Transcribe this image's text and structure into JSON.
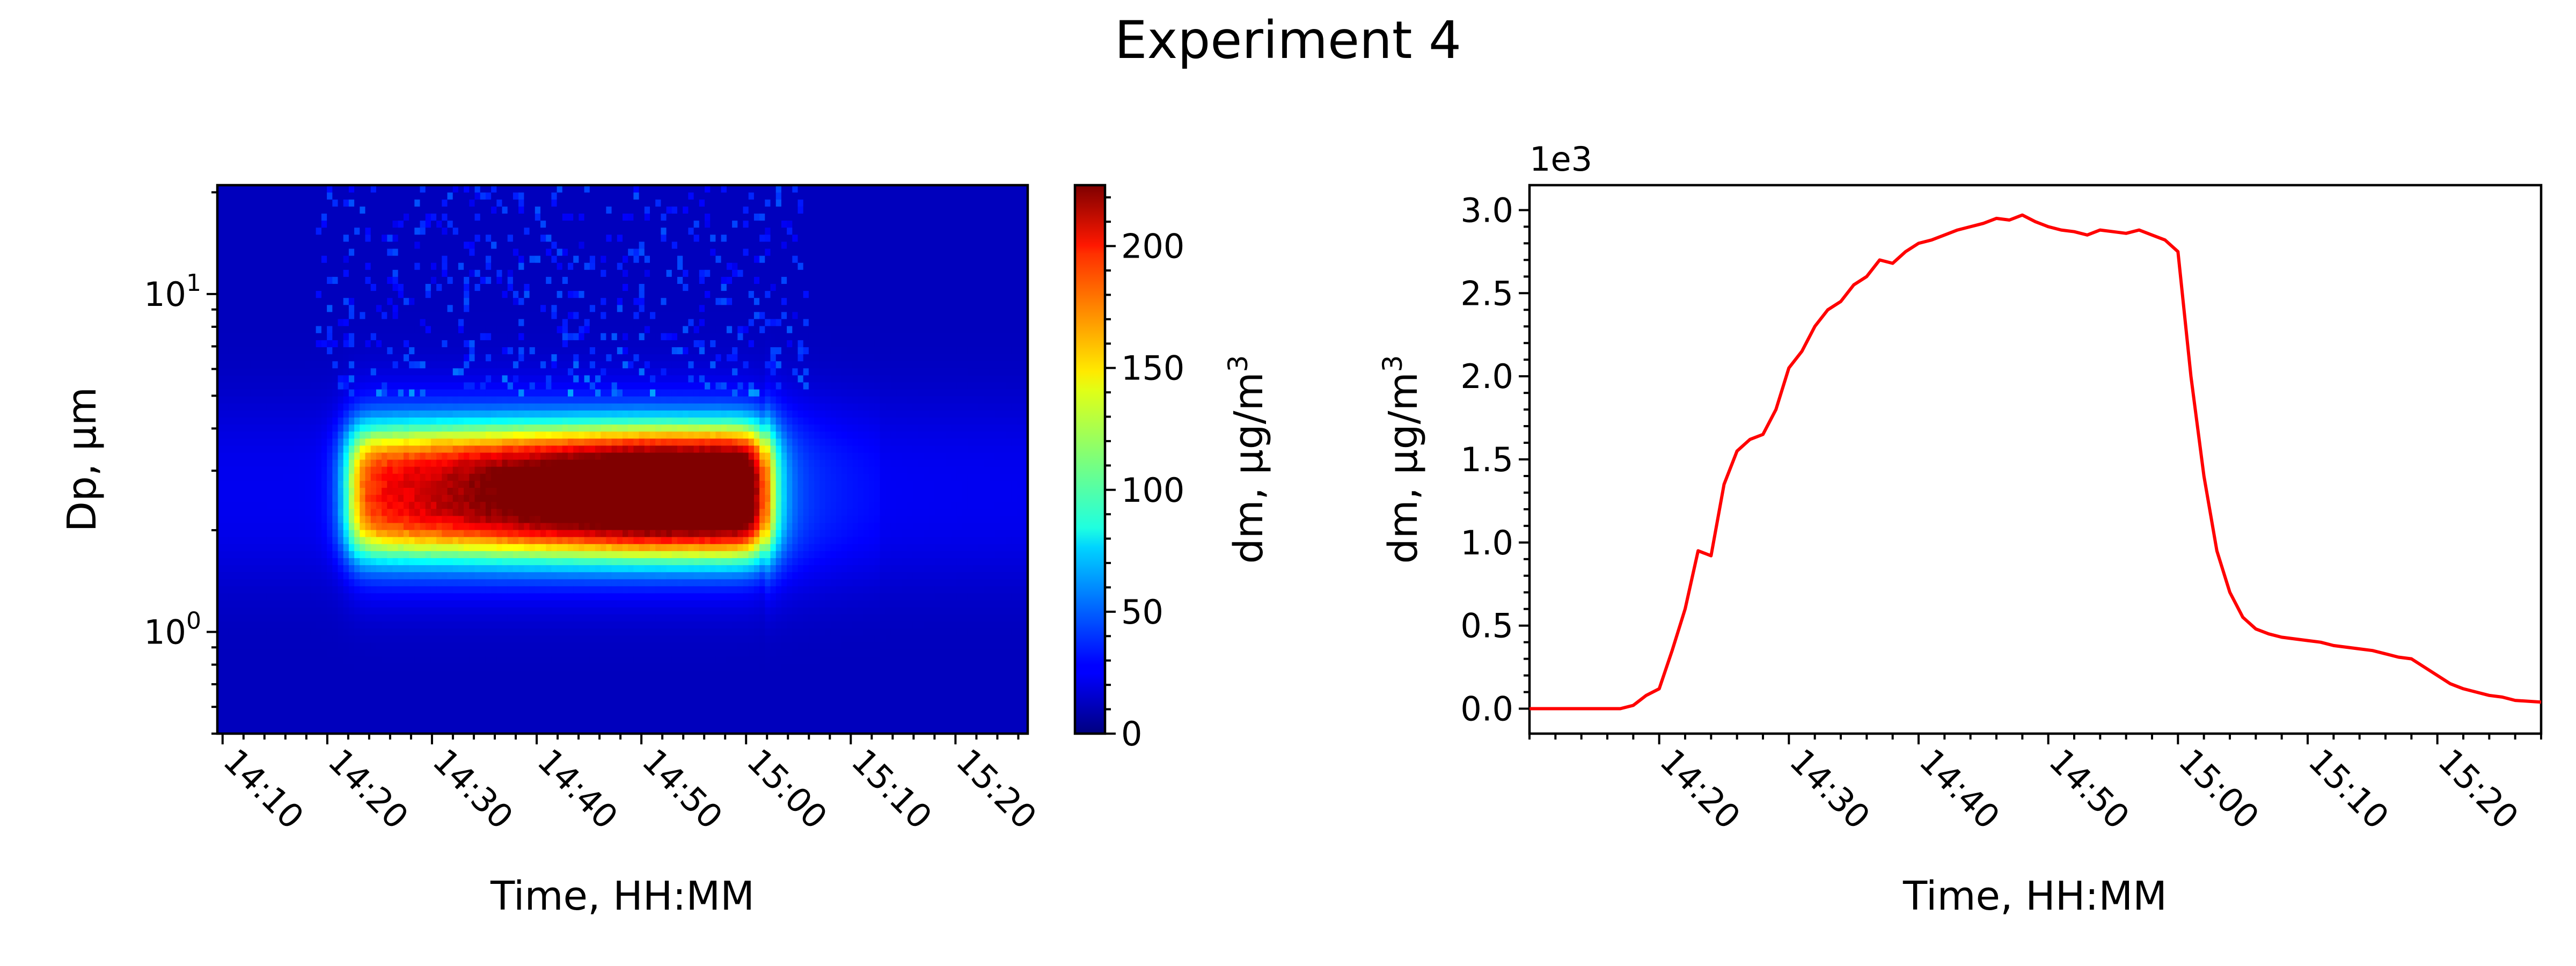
{
  "figure": {
    "title": "Experiment 4"
  },
  "chart_data": [
    {
      "type": "heatmap",
      "xlabel": "Time, HH:MM",
      "ylabel": "Dp, µm",
      "x_tick_labels": [
        "14:10",
        "14:20",
        "14:30",
        "14:40",
        "14:50",
        "15:00",
        "15:10",
        "15:20"
      ],
      "xlim": [
        "14:09.5",
        "15:26.9"
      ],
      "y_scale": "log",
      "ylim": [
        0.5,
        21
      ],
      "y_ticks": [
        {
          "value": 1,
          "base": "10",
          "exp": "0"
        },
        {
          "value": 10,
          "base": "10",
          "exp": "1"
        }
      ],
      "colormap": "jet",
      "colorbar": {
        "label": "dm, µg/m",
        "label_superscript": "3",
        "range": [
          0,
          225
        ],
        "ticks": [
          "0",
          "50",
          "100",
          "150",
          "200"
        ]
      },
      "grid": false,
      "description_values": {
        "plume_start": "14:22",
        "plume_end": "15:02",
        "core_dp_range_um": [
          1.5,
          4.5
        ],
        "peak_dp_um": 2.6,
        "peak_value": 220
      }
    },
    {
      "type": "line",
      "xlabel": "Time, HH:MM",
      "ylabel": "dm, µg/m",
      "ylabel_superscript": "3",
      "offset_text": "1e3",
      "x_tick_labels": [
        "14:20",
        "14:30",
        "14:40",
        "14:50",
        "15:00",
        "15:10",
        "15:20"
      ],
      "xlim": [
        "14:10",
        "15:28"
      ],
      "ylim": [
        -0.15,
        3.15
      ],
      "y_tick_labels": [
        "0.0",
        "0.5",
        "1.0",
        "1.5",
        "2.0",
        "2.5",
        "3.0"
      ],
      "grid": false,
      "series": [
        {
          "color": "#ff0000",
          "x": [
            "14:10",
            "14:17",
            "14:18",
            "14:19",
            "14:20",
            "14:21",
            "14:22",
            "14:23",
            "14:24",
            "14:25",
            "14:26",
            "14:27",
            "14:28",
            "14:29",
            "14:30",
            "14:31",
            "14:32",
            "14:33",
            "14:34",
            "14:35",
            "14:36",
            "14:37",
            "14:38",
            "14:39",
            "14:40",
            "14:41",
            "14:42",
            "14:43",
            "14:44",
            "14:45",
            "14:46",
            "14:47",
            "14:48",
            "14:49",
            "14:50",
            "14:51",
            "14:52",
            "14:53",
            "14:54",
            "14:55",
            "14:56",
            "14:57",
            "14:58",
            "14:59",
            "15:00",
            "15:01",
            "15:02",
            "15:03",
            "15:04",
            "15:05",
            "15:06",
            "15:07",
            "15:08",
            "15:09",
            "15:10",
            "15:11",
            "15:12",
            "15:13",
            "15:14",
            "15:15",
            "15:16",
            "15:17",
            "15:18",
            "15:19",
            "15:20",
            "15:21",
            "15:22",
            "15:23",
            "15:24",
            "15:25",
            "15:26",
            "15:28"
          ],
          "y": [
            0.0,
            0.0,
            0.02,
            0.08,
            0.12,
            0.35,
            0.6,
            0.95,
            0.92,
            1.35,
            1.55,
            1.62,
            1.65,
            1.8,
            2.05,
            2.15,
            2.3,
            2.4,
            2.45,
            2.55,
            2.6,
            2.7,
            2.68,
            2.75,
            2.8,
            2.82,
            2.85,
            2.88,
            2.9,
            2.92,
            2.95,
            2.94,
            2.97,
            2.93,
            2.9,
            2.88,
            2.87,
            2.85,
            2.88,
            2.87,
            2.86,
            2.88,
            2.85,
            2.82,
            2.75,
            2.0,
            1.4,
            0.95,
            0.7,
            0.55,
            0.48,
            0.45,
            0.43,
            0.42,
            0.41,
            0.4,
            0.38,
            0.37,
            0.36,
            0.35,
            0.33,
            0.31,
            0.3,
            0.25,
            0.2,
            0.15,
            0.12,
            0.1,
            0.08,
            0.07,
            0.05,
            0.04
          ]
        }
      ]
    }
  ]
}
